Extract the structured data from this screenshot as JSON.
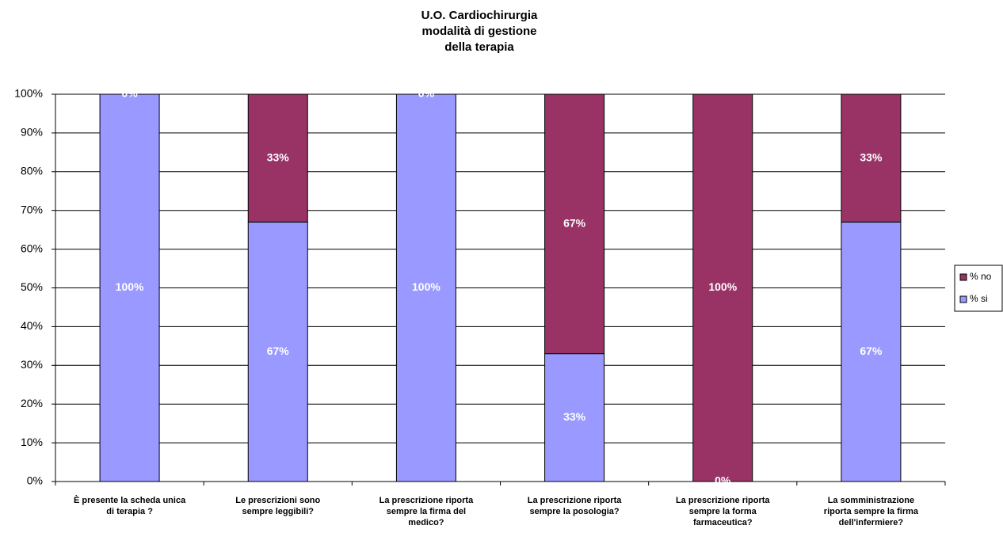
{
  "chart_data": {
    "type": "stacked_bar",
    "title": [
      "U.O. Cardiochirurgia",
      "modalità di gestione",
      "della terapia"
    ],
    "categories": [
      [
        "È presente la scheda unica",
        "di terapia ?"
      ],
      [
        "Le prescrizioni sono",
        "sempre leggibili?"
      ],
      [
        "La prescrizione riporta",
        "sempre la firma del",
        "medico?"
      ],
      [
        "La prescrizione riporta",
        "sempre la posologia?"
      ],
      [
        "La prescrizione riporta",
        "sempre la forma",
        "farmaceutica?"
      ],
      [
        "La somministrazione",
        "riporta sempre la firma",
        "dell'infermiere?"
      ]
    ],
    "series": [
      {
        "name": "% si",
        "color": "#9999ff",
        "values": [
          100,
          67,
          100,
          33,
          0,
          67
        ],
        "value_labels": [
          "100%",
          "67%",
          "100%",
          "33%",
          "0%",
          "67%"
        ]
      },
      {
        "name": "% no",
        "color": "#993366",
        "values": [
          0,
          33,
          0,
          67,
          100,
          33
        ],
        "value_labels": [
          "0%",
          "33%",
          "0%",
          "67%",
          "100%",
          "33%"
        ]
      }
    ],
    "ylim": [
      0,
      100
    ],
    "yticks": [
      {
        "value": 0,
        "label": "0%"
      },
      {
        "value": 10,
        "label": "10%"
      },
      {
        "value": 20,
        "label": "20%"
      },
      {
        "value": 30,
        "label": "30%"
      },
      {
        "value": 40,
        "label": "40%"
      },
      {
        "value": 50,
        "label": "50%"
      },
      {
        "value": 60,
        "label": "60%"
      },
      {
        "value": 70,
        "label": "70%"
      },
      {
        "value": 80,
        "label": "80%"
      },
      {
        "value": 90,
        "label": "90%"
      },
      {
        "value": 100,
        "label": "100%"
      }
    ],
    "grid": true,
    "legend": "right"
  }
}
